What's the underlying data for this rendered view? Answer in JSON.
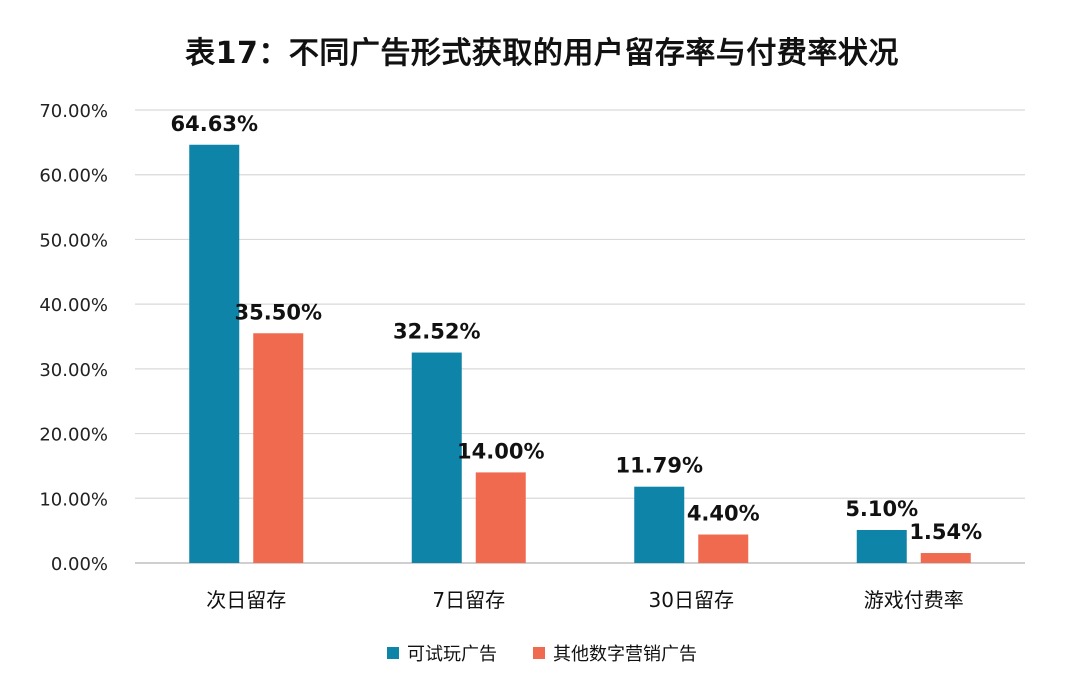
{
  "chart_data": {
    "type": "bar",
    "title": "表17：不同广告形式获取的用户留存率与付费率状况",
    "xlabel": "",
    "ylabel": "",
    "categories": [
      "次日留存",
      "7日留存",
      "30日留存",
      "游戏付费率"
    ],
    "series": [
      {
        "name": "可试玩广告",
        "color": "#0E84A9",
        "values": [
          64.63,
          32.52,
          11.79,
          5.1
        ],
        "labels": [
          "64.63%",
          "32.52%",
          "11.79%",
          "5.10%"
        ]
      },
      {
        "name": "其他数字营销广告",
        "color": "#EF6A4F",
        "values": [
          35.5,
          14.0,
          4.4,
          1.54
        ],
        "labels": [
          "35.50%",
          "14.00%",
          "4.40%",
          "1.54%"
        ]
      }
    ],
    "ylim": [
      0,
      70
    ],
    "yticks": [
      "0.00%",
      "10.00%",
      "20.00%",
      "30.00%",
      "40.00%",
      "50.00%",
      "60.00%",
      "70.00%"
    ],
    "grid": true,
    "legend_position": "bottom"
  }
}
